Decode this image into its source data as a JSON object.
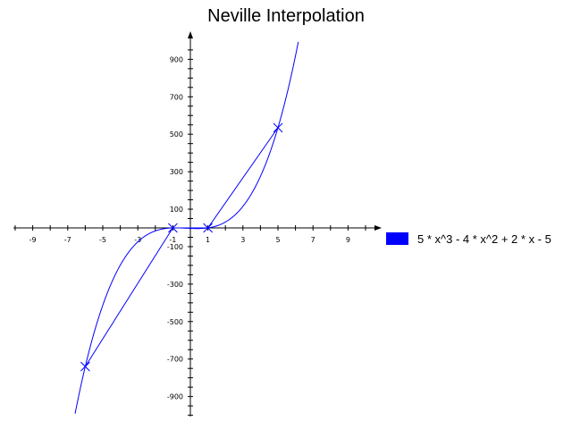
{
  "chart_data": {
    "type": "line",
    "title": "Neville Interpolation",
    "xlabel": "",
    "ylabel": "",
    "xlim": [
      -10,
      10
    ],
    "ylim": [
      -1000,
      1000
    ],
    "x_ticks": [
      -9,
      -7,
      -5,
      -3,
      -1,
      1,
      3,
      5,
      7,
      9
    ],
    "y_ticks": [
      900,
      700,
      500,
      300,
      100,
      -100,
      -300,
      -500,
      -700,
      -900
    ],
    "x_tick_labels": [
      "-9",
      "-7",
      "-5",
      "-3",
      "-1",
      "1",
      "3",
      "5",
      "7",
      "9"
    ],
    "y_tick_labels": [
      "900",
      "700",
      "500",
      "300",
      "100",
      "-100",
      "-300",
      "-500",
      "-700",
      "-900"
    ],
    "grid": false,
    "legend_position": "right",
    "series": [
      {
        "name": "5 * x^3 - 4 * x^2 + 2 * x - 5",
        "kind": "function",
        "polynomial_coefficients": [
          5,
          -4,
          2,
          -5
        ],
        "color": "#0000ff"
      }
    ],
    "interpolation_points": [
      {
        "x": -6,
        "y": -740
      },
      {
        "x": -1,
        "y": 0
      },
      {
        "x": 1,
        "y": 0
      },
      {
        "x": 5,
        "y": 535
      }
    ],
    "colors": {
      "series": "#0000ff",
      "legend_swatch": "#0000ff",
      "axis": "#000000"
    }
  }
}
